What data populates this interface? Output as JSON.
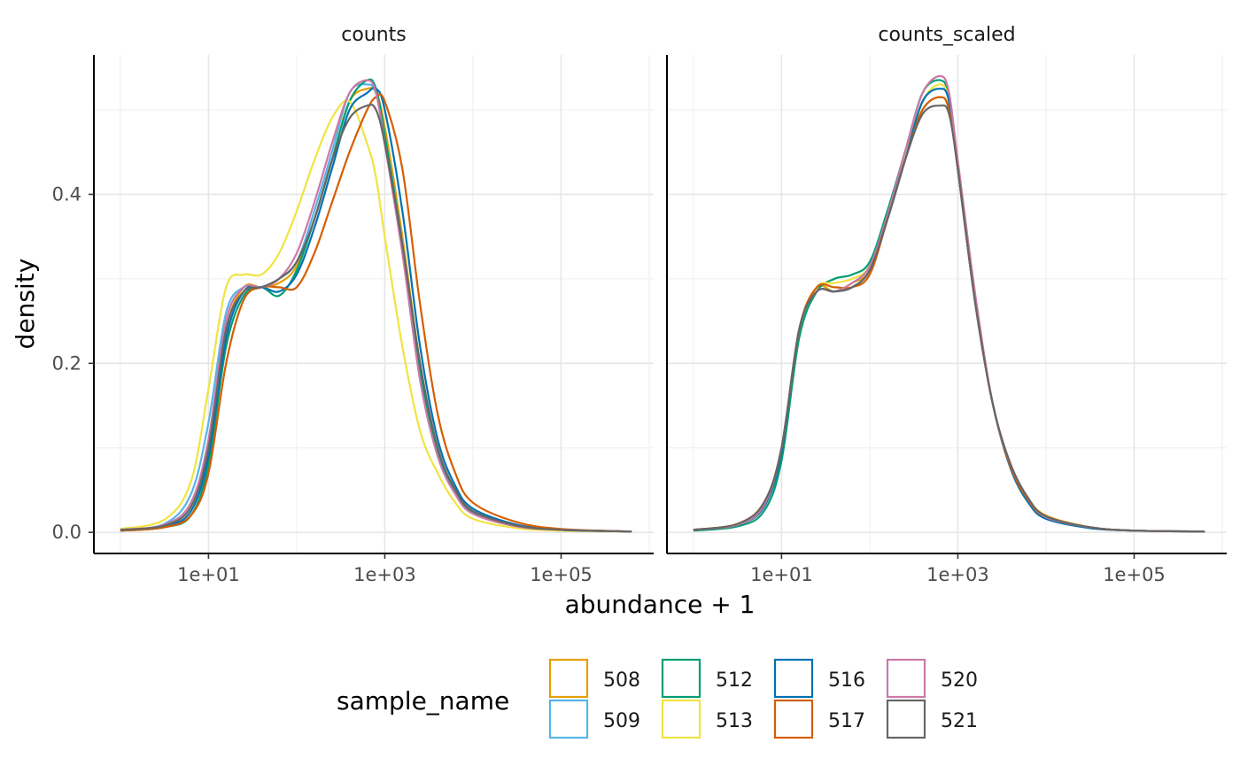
{
  "chart_data": {
    "type": "line",
    "subtype": "density",
    "facets": [
      "counts",
      "counts_scaled"
    ],
    "xlabel": "abundance + 1",
    "ylabel": "density",
    "x_scale": "log10",
    "x_ticks": [
      "1e+01",
      "1e+03",
      "1e+05"
    ],
    "x_tick_values": [
      1,
      3,
      5
    ],
    "xlim_log10": [
      -0.3,
      6.05
    ],
    "y_ticks": [
      "0.0",
      "0.2",
      "0.4"
    ],
    "y_tick_values": [
      0.0,
      0.2,
      0.4
    ],
    "ylim": [
      -0.025,
      0.565
    ],
    "grid": true,
    "legend": {
      "title": "sample_name",
      "position": "bottom"
    },
    "x_log10": [
      0,
      0.5,
      0.8,
      1.0,
      1.2,
      1.4,
      1.6,
      1.8,
      2.0,
      2.2,
      2.4,
      2.6,
      2.8,
      2.9,
      3.0,
      3.2,
      3.4,
      3.6,
      3.8,
      4.0,
      4.5,
      5.0,
      5.8
    ],
    "series": [
      {
        "name": "508",
        "color": "#E69F00",
        "counts": [
          0.003,
          0.008,
          0.03,
          0.1,
          0.24,
          0.29,
          0.29,
          0.295,
          0.315,
          0.37,
          0.44,
          0.51,
          0.525,
          0.52,
          0.48,
          0.35,
          0.2,
          0.1,
          0.05,
          0.025,
          0.008,
          0.003,
          0.001
        ],
        "counts_scaled": [
          0.003,
          0.01,
          0.035,
          0.1,
          0.24,
          0.29,
          0.285,
          0.295,
          0.31,
          0.37,
          0.44,
          0.5,
          0.515,
          0.5,
          0.43,
          0.27,
          0.15,
          0.08,
          0.04,
          0.02,
          0.006,
          0.002,
          0.001
        ]
      },
      {
        "name": "509",
        "color": "#56B4E9",
        "counts": [
          0.003,
          0.01,
          0.045,
          0.13,
          0.26,
          0.29,
          0.29,
          0.3,
          0.32,
          0.38,
          0.45,
          0.52,
          0.53,
          0.52,
          0.47,
          0.34,
          0.19,
          0.095,
          0.047,
          0.023,
          0.007,
          0.003,
          0.001
        ],
        "counts_scaled": [
          0.003,
          0.009,
          0.033,
          0.1,
          0.24,
          0.285,
          0.285,
          0.29,
          0.31,
          0.37,
          0.44,
          0.51,
          0.525,
          0.51,
          0.43,
          0.27,
          0.15,
          0.078,
          0.038,
          0.018,
          0.006,
          0.002,
          0.001
        ]
      },
      {
        "name": "512",
        "color": "#009E73",
        "counts": [
          0.002,
          0.006,
          0.02,
          0.08,
          0.22,
          0.28,
          0.29,
          0.28,
          0.31,
          0.37,
          0.44,
          0.51,
          0.535,
          0.525,
          0.47,
          0.34,
          0.19,
          0.095,
          0.048,
          0.024,
          0.007,
          0.003,
          0.001
        ],
        "counts_scaled": [
          0.002,
          0.007,
          0.025,
          0.085,
          0.23,
          0.285,
          0.3,
          0.305,
          0.32,
          0.38,
          0.45,
          0.52,
          0.535,
          0.515,
          0.43,
          0.27,
          0.15,
          0.078,
          0.038,
          0.018,
          0.006,
          0.002,
          0.001
        ]
      },
      {
        "name": "513",
        "color": "#F0E442",
        "counts": [
          0.004,
          0.015,
          0.06,
          0.17,
          0.29,
          0.305,
          0.305,
          0.33,
          0.38,
          0.44,
          0.49,
          0.51,
          0.46,
          0.42,
          0.35,
          0.22,
          0.12,
          0.07,
          0.035,
          0.016,
          0.005,
          0.002,
          0.001
        ],
        "counts_scaled": [
          0.003,
          0.01,
          0.035,
          0.1,
          0.24,
          0.29,
          0.295,
          0.3,
          0.315,
          0.37,
          0.44,
          0.51,
          0.53,
          0.51,
          0.43,
          0.27,
          0.15,
          0.08,
          0.04,
          0.019,
          0.006,
          0.002,
          0.001
        ]
      },
      {
        "name": "516",
        "color": "#0072B2",
        "counts": [
          0.002,
          0.007,
          0.025,
          0.09,
          0.23,
          0.285,
          0.29,
          0.285,
          0.305,
          0.36,
          0.43,
          0.5,
          0.52,
          0.525,
          0.5,
          0.38,
          0.22,
          0.11,
          0.055,
          0.028,
          0.009,
          0.003,
          0.001
        ],
        "counts_scaled": [
          0.003,
          0.009,
          0.03,
          0.095,
          0.24,
          0.285,
          0.285,
          0.29,
          0.31,
          0.37,
          0.44,
          0.51,
          0.525,
          0.51,
          0.43,
          0.27,
          0.15,
          0.075,
          0.035,
          0.016,
          0.005,
          0.002,
          0.001
        ]
      },
      {
        "name": "517",
        "color": "#D55E00",
        "counts": [
          0.002,
          0.006,
          0.02,
          0.07,
          0.2,
          0.275,
          0.29,
          0.29,
          0.29,
          0.33,
          0.39,
          0.45,
          0.5,
          0.515,
          0.51,
          0.43,
          0.27,
          0.14,
          0.07,
          0.035,
          0.012,
          0.004,
          0.001
        ],
        "counts_scaled": [
          0.003,
          0.01,
          0.035,
          0.1,
          0.24,
          0.29,
          0.29,
          0.29,
          0.305,
          0.37,
          0.44,
          0.5,
          0.515,
          0.5,
          0.43,
          0.27,
          0.15,
          0.077,
          0.038,
          0.018,
          0.006,
          0.002,
          0.001
        ]
      },
      {
        "name": "520",
        "color": "#CC79A7",
        "counts": [
          0.003,
          0.009,
          0.035,
          0.11,
          0.25,
          0.29,
          0.29,
          0.3,
          0.33,
          0.39,
          0.46,
          0.52,
          0.535,
          0.52,
          0.46,
          0.33,
          0.18,
          0.09,
          0.045,
          0.022,
          0.007,
          0.003,
          0.001
        ],
        "counts_scaled": [
          0.003,
          0.009,
          0.032,
          0.1,
          0.24,
          0.285,
          0.285,
          0.295,
          0.315,
          0.375,
          0.45,
          0.52,
          0.54,
          0.52,
          0.44,
          0.28,
          0.15,
          0.08,
          0.04,
          0.018,
          0.006,
          0.002,
          0.001
        ]
      },
      {
        "name": "521",
        "color": "#666666",
        "counts": [
          0.003,
          0.008,
          0.03,
          0.1,
          0.24,
          0.285,
          0.29,
          0.3,
          0.32,
          0.37,
          0.44,
          0.49,
          0.505,
          0.5,
          0.46,
          0.34,
          0.2,
          0.1,
          0.05,
          0.025,
          0.008,
          0.003,
          0.001
        ],
        "counts_scaled": [
          0.003,
          0.01,
          0.035,
          0.1,
          0.24,
          0.285,
          0.285,
          0.29,
          0.31,
          0.37,
          0.44,
          0.495,
          0.505,
          0.495,
          0.43,
          0.27,
          0.15,
          0.08,
          0.04,
          0.019,
          0.006,
          0.002,
          0.001
        ]
      }
    ]
  }
}
